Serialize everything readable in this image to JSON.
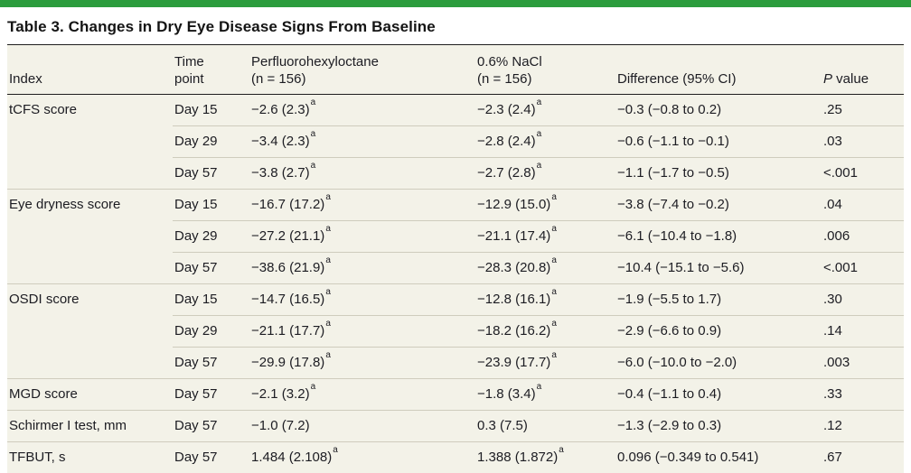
{
  "accent_color": "#2b9c3d",
  "title": "Table 3. Changes in Dry Eye Disease Signs From Baseline",
  "table": {
    "columns": [
      {
        "id": "index",
        "lines": [
          [
            {
              "t": "Index"
            }
          ]
        ]
      },
      {
        "id": "time",
        "lines": [
          [
            {
              "t": "Time"
            }
          ],
          [
            {
              "t": "point"
            }
          ]
        ]
      },
      {
        "id": "pfho",
        "lines": [
          [
            {
              "t": "Perfluorohexyloctane"
            }
          ],
          [
            {
              "t": "(n = 156)"
            }
          ]
        ]
      },
      {
        "id": "nacl",
        "lines": [
          [
            {
              "t": "0.6% NaCl"
            }
          ],
          [
            {
              "t": "(n = 156)"
            }
          ]
        ]
      },
      {
        "id": "diff",
        "lines": [
          [
            {
              "t": "Difference (95% CI)"
            }
          ]
        ]
      },
      {
        "id": "pvalue",
        "lines": [
          [
            {
              "t": "P",
              "i": true
            },
            {
              "t": " value"
            }
          ]
        ]
      }
    ],
    "rows": [
      {
        "index": "tCFS score",
        "time": "Day 15",
        "pfho": {
          "v": "−2.6 (2.3)",
          "sup": "a"
        },
        "nacl": {
          "v": "−2.3 (2.4)",
          "sup": "a"
        },
        "diff": "−0.3 (−0.8 to 0.2)",
        "p": ".25"
      },
      {
        "index": "",
        "time": "Day 29",
        "pfho": {
          "v": "−3.4 (2.3)",
          "sup": "a"
        },
        "nacl": {
          "v": "−2.8 (2.4)",
          "sup": "a"
        },
        "diff": "−0.6 (−1.1 to −0.1)",
        "p": ".03"
      },
      {
        "index": "",
        "time": "Day 57",
        "pfho": {
          "v": "−3.8 (2.7)",
          "sup": "a"
        },
        "nacl": {
          "v": "−2.7 (2.8)",
          "sup": "a"
        },
        "diff": "−1.1 (−1.7 to −0.5)",
        "p": "<.001"
      },
      {
        "index": "Eye dryness score",
        "time": "Day 15",
        "pfho": {
          "v": "−16.7 (17.2)",
          "sup": "a"
        },
        "nacl": {
          "v": "−12.9 (15.0)",
          "sup": "a"
        },
        "diff": "−3.8 (−7.4 to −0.2)",
        "p": ".04"
      },
      {
        "index": "",
        "time": "Day 29",
        "pfho": {
          "v": "−27.2 (21.1)",
          "sup": "a"
        },
        "nacl": {
          "v": "−21.1 (17.4)",
          "sup": "a"
        },
        "diff": "−6.1 (−10.4 to −1.8)",
        "p": ".006"
      },
      {
        "index": "",
        "time": "Day 57",
        "pfho": {
          "v": "−38.6 (21.9)",
          "sup": "a"
        },
        "nacl": {
          "v": "−28.3 (20.8)",
          "sup": "a"
        },
        "diff": "−10.4 (−15.1 to −5.6)",
        "p": "<.001"
      },
      {
        "index": "OSDI score",
        "time": "Day 15",
        "pfho": {
          "v": "−14.7 (16.5)",
          "sup": "a"
        },
        "nacl": {
          "v": "−12.8 (16.1)",
          "sup": "a"
        },
        "diff": "−1.9 (−5.5 to 1.7)",
        "p": ".30"
      },
      {
        "index": "",
        "time": "Day 29",
        "pfho": {
          "v": "−21.1 (17.7)",
          "sup": "a"
        },
        "nacl": {
          "v": "−18.2 (16.2)",
          "sup": "a"
        },
        "diff": "−2.9 (−6.6 to 0.9)",
        "p": ".14"
      },
      {
        "index": "",
        "time": "Day 57",
        "pfho": {
          "v": "−29.9 (17.8)",
          "sup": "a"
        },
        "nacl": {
          "v": "−23.9 (17.7)",
          "sup": "a"
        },
        "diff": "−6.0 (−10.0 to −2.0)",
        "p": ".003"
      },
      {
        "index": "MGD score",
        "time": "Day 57",
        "pfho": {
          "v": "−2.1 (3.2)",
          "sup": "a"
        },
        "nacl": {
          "v": "−1.8 (3.4)",
          "sup": "a"
        },
        "diff": "−0.4 (−1.1 to 0.4)",
        "p": ".33"
      },
      {
        "index": "Schirmer I test, mm",
        "time": "Day 57",
        "pfho": {
          "v": "−1.0 (7.2)",
          "sup": ""
        },
        "nacl": {
          "v": "0.3 (7.5)",
          "sup": ""
        },
        "diff": "−1.3 (−2.9 to 0.3)",
        "p": ".12"
      },
      {
        "index": "TFBUT, s",
        "time": "Day 57",
        "pfho": {
          "v": "1.484 (2.108)",
          "sup": "a"
        },
        "nacl": {
          "v": "1.388 (1.872)",
          "sup": "a"
        },
        "diff": "0.096 (−0.349 to 0.541)",
        "p": ".67"
      }
    ]
  }
}
